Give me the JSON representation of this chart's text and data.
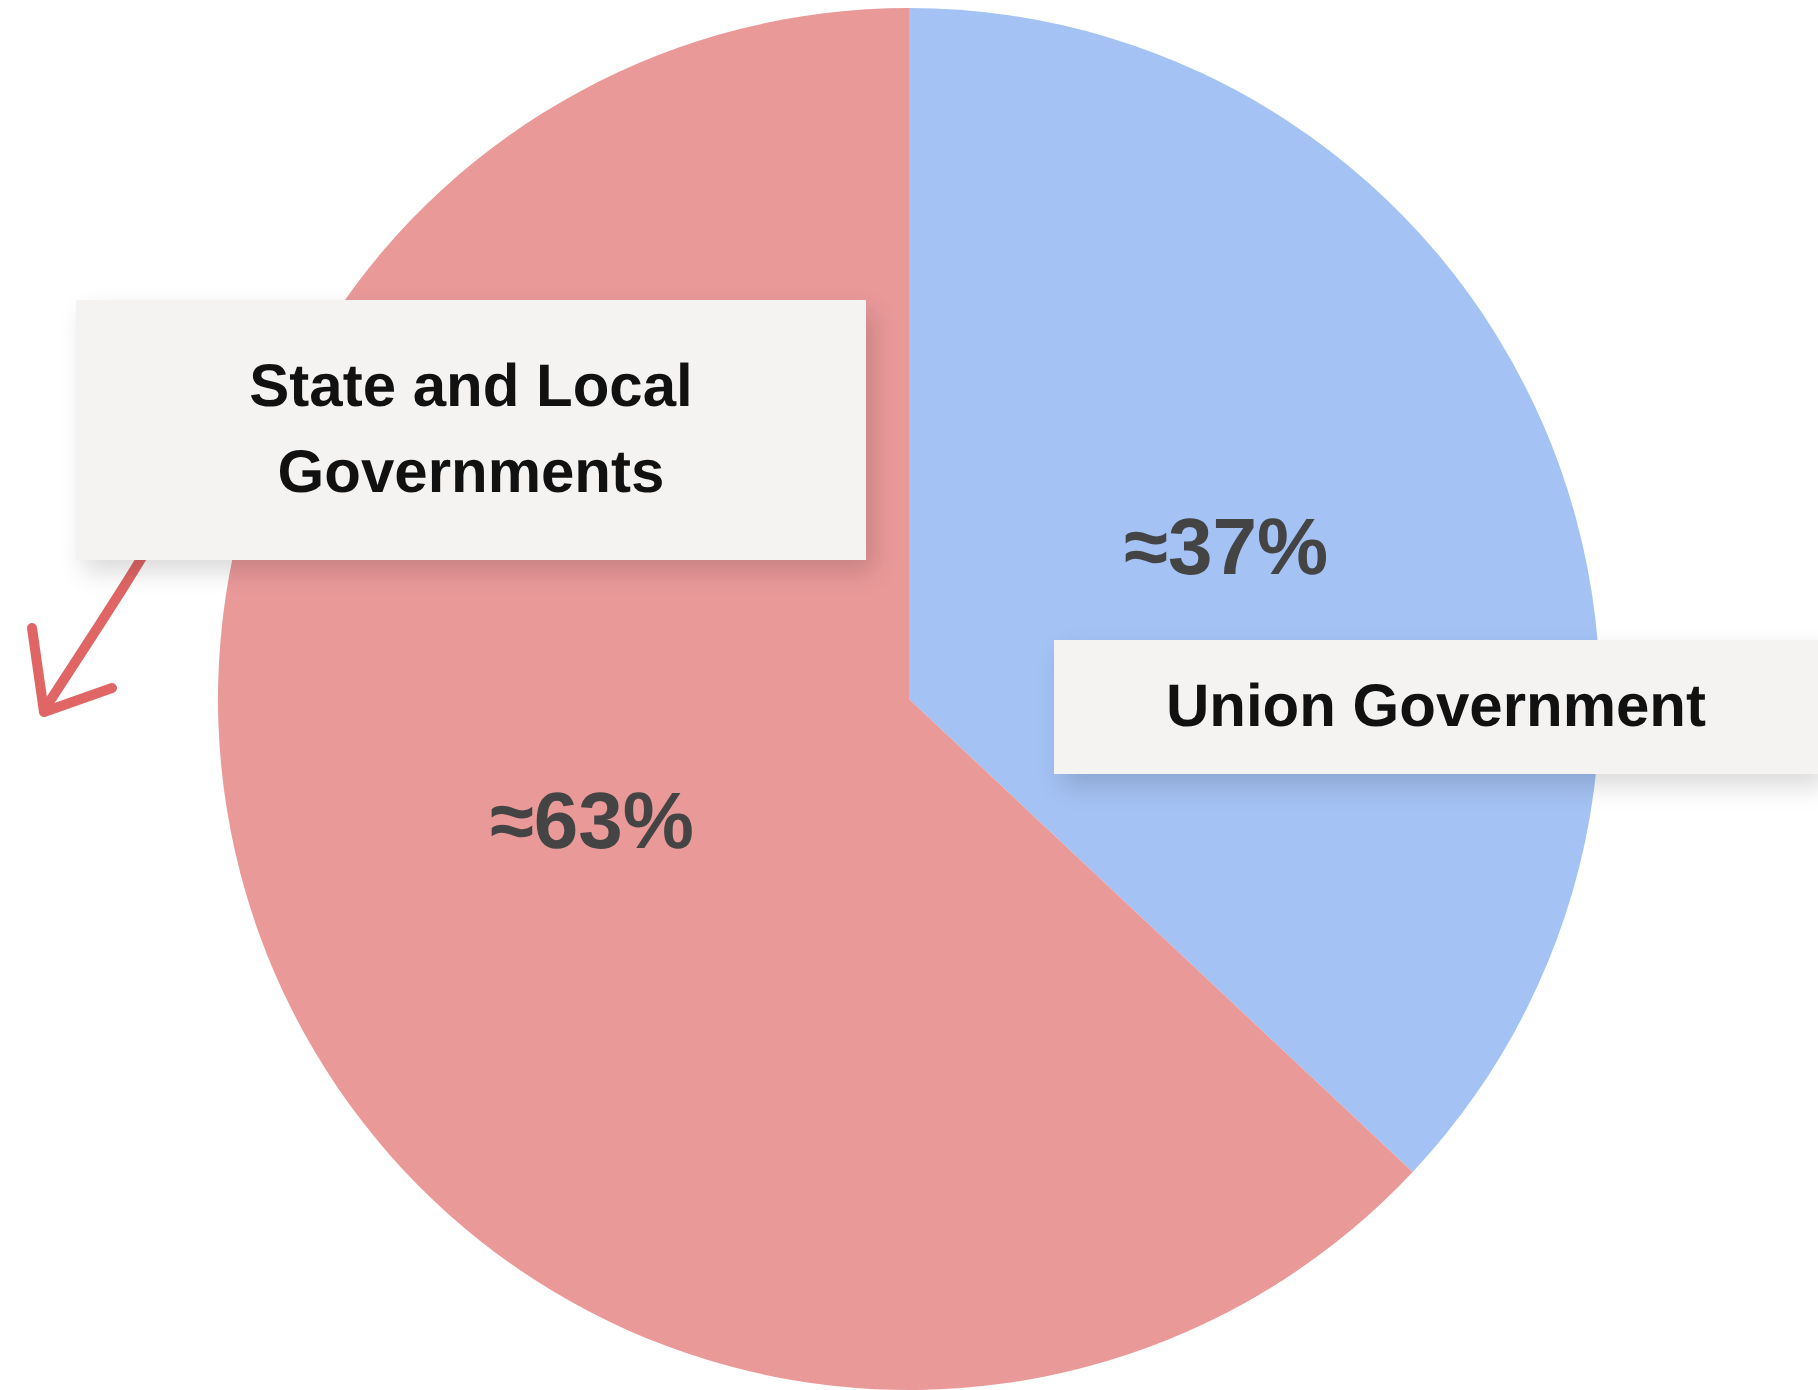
{
  "chart_data": {
    "type": "pie",
    "categories": [
      "Union Government",
      "State and Local Governments"
    ],
    "values": [
      37,
      63
    ],
    "colors": [
      "#a4c2f4",
      "#ea9999"
    ],
    "value_labels": [
      "≈37%",
      "≈63%"
    ],
    "legend": false
  }
}
